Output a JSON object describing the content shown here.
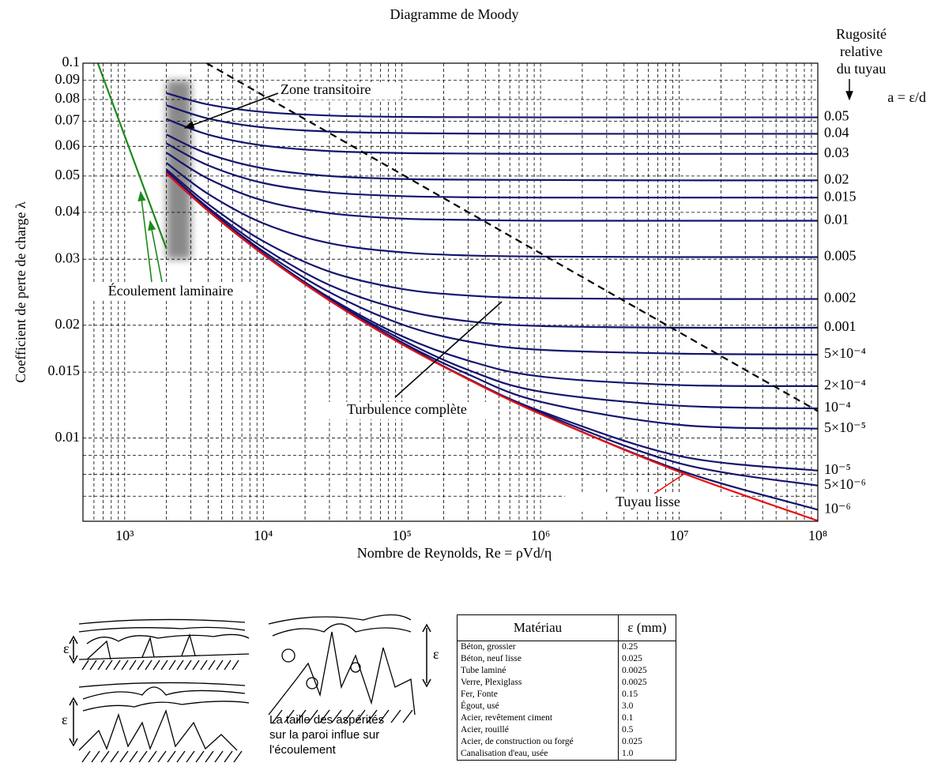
{
  "chart_data": {
    "type": "line",
    "title": "Diagramme de Moody",
    "x_label": "Nombre de Reynolds, Re = ρVd/η",
    "y_label": "Coefficient de perte de charge λ",
    "legend_title": [
      "Rugosité",
      "relative",
      "du tuyau"
    ],
    "legend_formula": "a = ε/d",
    "log_x": true,
    "log_y": true,
    "grid": true,
    "xlim": [
      500,
      100000000
    ],
    "ylim": [
      0.006,
      0.1
    ],
    "xticks": [
      {
        "value": 1000,
        "label": "10³"
      },
      {
        "value": 10000,
        "label": "10⁴"
      },
      {
        "value": 100000,
        "label": "10⁵"
      },
      {
        "value": 1000000,
        "label": "10⁶"
      },
      {
        "value": 10000000,
        "label": "10⁷"
      },
      {
        "value": 100000000,
        "label": "10⁸"
      }
    ],
    "x_minor_ticks": [
      600,
      700,
      800,
      900,
      2000,
      3000,
      4000,
      5000,
      6000,
      7000,
      8000,
      9000,
      20000,
      30000,
      40000,
      50000,
      60000,
      70000,
      80000,
      90000,
      200000,
      300000,
      400000,
      500000,
      600000,
      700000,
      800000,
      900000,
      2000000,
      3000000,
      4000000,
      5000000,
      6000000,
      7000000,
      8000000,
      9000000,
      20000000,
      30000000,
      40000000,
      50000000,
      60000000,
      70000000,
      80000000,
      90000000
    ],
    "yticks": [
      0.1,
      0.09,
      0.08,
      0.07,
      0.06,
      0.05,
      0.04,
      0.03,
      0.02,
      0.015,
      0.01
    ],
    "y_minor_ticks": [
      0.009,
      0.008,
      0.007
    ],
    "x": [
      2000,
      4000,
      10000,
      30000,
      100000,
      300000,
      1000000,
      10000000,
      100000000
    ],
    "series": [
      {
        "name": "0.05",
        "color": "#14146e",
        "values": [
          0.0832,
          0.0776,
          0.0741,
          0.0725,
          0.0719,
          0.0718,
          0.0717,
          0.0717,
          0.0717
        ]
      },
      {
        "name": "0.04",
        "color": "#14146e",
        "values": [
          0.0772,
          0.0712,
          0.0674,
          0.0657,
          0.0651,
          0.0649,
          0.0648,
          0.0648,
          0.0648
        ]
      },
      {
        "name": "0.03",
        "color": "#14146e",
        "values": [
          0.071,
          0.0645,
          0.0603,
          0.0583,
          0.0576,
          0.0574,
          0.0573,
          0.0573,
          0.0573
        ]
      },
      {
        "name": "0.02",
        "color": "#14146e",
        "values": [
          0.0645,
          0.0573,
          0.0524,
          0.05,
          0.0491,
          0.0489,
          0.0488,
          0.0487,
          0.0487
        ]
      },
      {
        "name": "0.015",
        "color": "#14146e",
        "values": [
          0.0611,
          0.0534,
          0.0479,
          0.0452,
          0.0442,
          0.0439,
          0.0438,
          0.0438,
          0.0438
        ]
      },
      {
        "name": "0.01",
        "color": "#14146e",
        "values": [
          0.0577,
          0.0492,
          0.043,
          0.0398,
          0.0385,
          0.0382,
          0.038,
          0.038,
          0.038
        ]
      },
      {
        "name": "0.005",
        "color": "#14146e",
        "values": [
          0.0542,
          0.0448,
          0.0374,
          0.0331,
          0.0313,
          0.0307,
          0.0305,
          0.0304,
          0.0304
        ]
      },
      {
        "name": "0.002",
        "color": "#14146e",
        "values": [
          0.0521,
          0.0421,
          0.0335,
          0.0278,
          0.025,
          0.024,
          0.0236,
          0.0235,
          0.0235
        ]
      },
      {
        "name": "0.001",
        "color": "#14146e",
        "values": [
          0.0515,
          0.0412,
          0.0322,
          0.0256,
          0.022,
          0.0205,
          0.0199,
          0.0197,
          0.0197
        ]
      },
      {
        "name": "5×10⁻⁴",
        "color": "#14146e",
        "values": [
          0.0512,
          0.0408,
          0.0315,
          0.0245,
          0.0201,
          0.0181,
          0.0172,
          0.0168,
          0.0167
        ]
      },
      {
        "name": "2×10⁻⁴",
        "color": "#14146e",
        "values": [
          0.051,
          0.0406,
          0.0311,
          0.0237,
          0.0187,
          0.0161,
          0.0146,
          0.01385,
          0.01376
        ]
      },
      {
        "name": "10⁻⁴",
        "color": "#14146e",
        "values": [
          0.0509,
          0.0405,
          0.031,
          0.0235,
          0.0183,
          0.0152,
          0.0133,
          0.0122,
          0.012
        ]
      },
      {
        "name": "5×10⁻⁵",
        "color": "#14146e",
        "values": [
          0.0509,
          0.0404,
          0.0309,
          0.0234,
          0.018,
          0.0148,
          0.0125,
          0.01085,
          0.0106
        ]
      },
      {
        "name": "10⁻⁵",
        "color": "#14146e",
        "values": [
          0.0509,
          0.0404,
          0.0309,
          0.0233,
          0.0179,
          0.0144,
          0.0118,
          0.00896,
          0.00819
        ]
      },
      {
        "name": "5×10⁻⁶",
        "color": "#14146e",
        "values": [
          0.0509,
          0.0404,
          0.0309,
          0.0233,
          0.0178,
          0.0144,
          0.0117,
          0.00857,
          0.00747
        ]
      },
      {
        "name": "10⁻⁶",
        "color": "#14146e",
        "values": [
          0.0509,
          0.0404,
          0.0309,
          0.0233,
          0.0178,
          0.0144,
          0.0116,
          0.00821,
          0.00644
        ]
      },
      {
        "color": "#e81010",
        "values": [
          0.0509,
          0.0404,
          0.0309,
          0.0233,
          0.0178,
          0.01435,
          0.01159,
          0.00813,
          0.00602
        ]
      },
      {
        "color": "#1a8a1a",
        "x": [
          640,
          2000
        ],
        "values": [
          0.1,
          0.032
        ]
      },
      {
        "color": "#000000",
        "style": "dashed",
        "x": [
          3900,
          100000000
        ],
        "values": [
          0.1,
          0.0118
        ]
      }
    ],
    "transition_zone": {
      "x": [
        2000,
        3000
      ],
      "y": [
        0.03,
        0.09
      ]
    },
    "annotations": [
      "Zone transitoire",
      "Écoulement laminaire",
      "Turbulence complète",
      "Tuyau lisse"
    ]
  },
  "epsilon_symbol": "ε",
  "roughness_caption": [
    "La taille des aspérités",
    "sur la paroi influe sur",
    "l'écoulement"
  ],
  "table": {
    "header": [
      "Matériau",
      "ε (mm)"
    ],
    "rows": [
      [
        "Béton, grossier",
        "0.25"
      ],
      [
        "Béton, neuf lisse",
        "0.025"
      ],
      [
        "Tube laminé",
        "0.0025"
      ],
      [
        "Verre, Plexiglass",
        "0.0025"
      ],
      [
        "Fer, Fonte",
        "0.15"
      ],
      [
        "Égout, usé",
        "3.0"
      ],
      [
        "Acier, revêtement ciment",
        "0.1"
      ],
      [
        "Acier, rouillé",
        "0.5"
      ],
      [
        "Acier, de construction ou forgé",
        "0.025"
      ],
      [
        "Canalisation d'eau, usée",
        "1.0"
      ]
    ]
  }
}
